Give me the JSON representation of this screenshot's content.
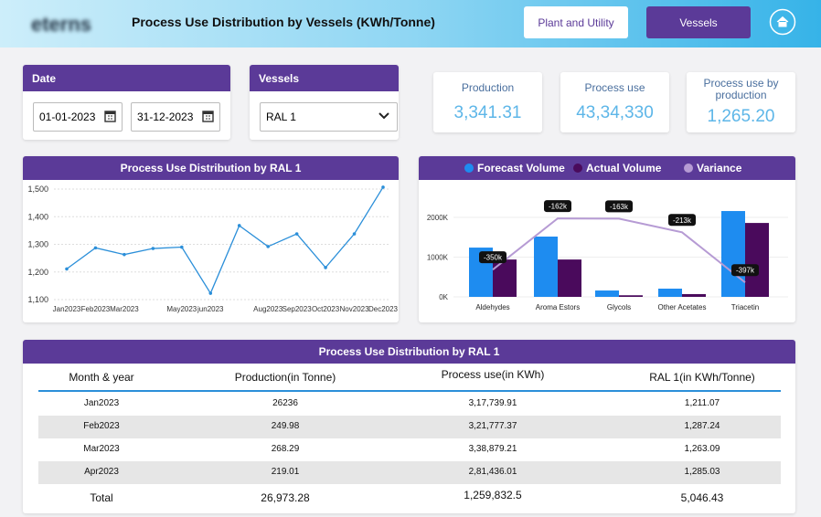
{
  "header": {
    "logo": "eterns",
    "title": "Process Use Distribution by Vessels (KWh/Tonne)",
    "buttons": [
      "Plant and Utility",
      "Vessels"
    ]
  },
  "filters": {
    "date_label": "Date",
    "start_date": "01-01-2023",
    "end_date": "31-12-2023",
    "vessels_label": "Vessels",
    "vessel": "RAL 1"
  },
  "kpis": [
    {
      "label": "Production",
      "value": "3,341.31"
    },
    {
      "label": "Process use",
      "value": "43,34,330"
    },
    {
      "label": "Process use by production",
      "value": "1,265.20"
    }
  ],
  "line_chart": {
    "type": "line",
    "title": "Process Use Distribution by RAL 1",
    "color": "#2b8fd9",
    "categories": [
      "Jan2023",
      "Feb2023",
      "Mar2023",
      null,
      "May2023",
      "jun2023",
      null,
      "Aug2023",
      "Sep2023",
      "Oct2023",
      "Nov2023",
      "Dec2023"
    ],
    "values": [
      1211.07,
      1287.24,
      1263.09,
      1285.03,
      1290,
      1123,
      1368,
      1292,
      1338,
      1216,
      1338,
      1507
    ],
    "ylim": [
      1100,
      1510
    ],
    "yticks": [
      {
        "value": 1100,
        "label": "1,100"
      },
      {
        "value": 1200,
        "label": "1,200"
      },
      {
        "value": 1300,
        "label": "1,300"
      },
      {
        "value": 1400,
        "label": "1,400"
      },
      {
        "value": 1500,
        "label": "1,500"
      }
    ],
    "grid": true
  },
  "bar_chart": {
    "type": "bar",
    "categories": [
      "Aldehydes",
      "Aroma Estors",
      "Glycols",
      "Other Acetates",
      "Triacetin"
    ],
    "series": [
      {
        "name": "Forecast Volume",
        "color": "#1e8cf0",
        "values": [
          1240000,
          1517000,
          160000,
          207000,
          2160000
        ]
      },
      {
        "name": "Actual Volume",
        "color": "#4a0a5c",
        "values": [
          940000,
          940000,
          40000,
          70000,
          1860000
        ]
      },
      {
        "name": "Variance",
        "color": "#b69bd4",
        "axis": "y2",
        "values": [
          -350000,
          -162000,
          -163000,
          -213000,
          -397000
        ],
        "value_labels": [
          "-350k",
          "-162k",
          "-163k",
          "-213k",
          "-397k"
        ]
      }
    ],
    "ylim": [
      0,
      2400000
    ],
    "yticks": [
      {
        "value": 0,
        "label": "0K"
      },
      {
        "value": 1000000,
        "label": "1000K"
      },
      {
        "value": 2000000,
        "label": "2000K"
      }
    ],
    "y2lim": [
      -450000,
      -100000
    ],
    "grid": true
  },
  "table": {
    "title": "Process Use Distribution by RAL 1",
    "columns": [
      "Month & year",
      "Production(in Tonne)",
      "Process use(in KWh)",
      "RAL 1(in KWh/Tonne)"
    ],
    "rows": [
      [
        "Jan2023",
        "26236",
        "3,17,739.91",
        "1,211.07"
      ],
      [
        "Feb2023",
        "249.98",
        "3,21,777.37",
        "1,287.24"
      ],
      [
        "Mar2023",
        "268.29",
        "3,38,879.21",
        "1,263.09"
      ],
      [
        "Apr2023",
        "219.01",
        "2,81,436.01",
        "1,285.03"
      ]
    ],
    "total": [
      "Total",
      "26,973.28",
      "1,259,832.5",
      "5,046.43"
    ]
  }
}
